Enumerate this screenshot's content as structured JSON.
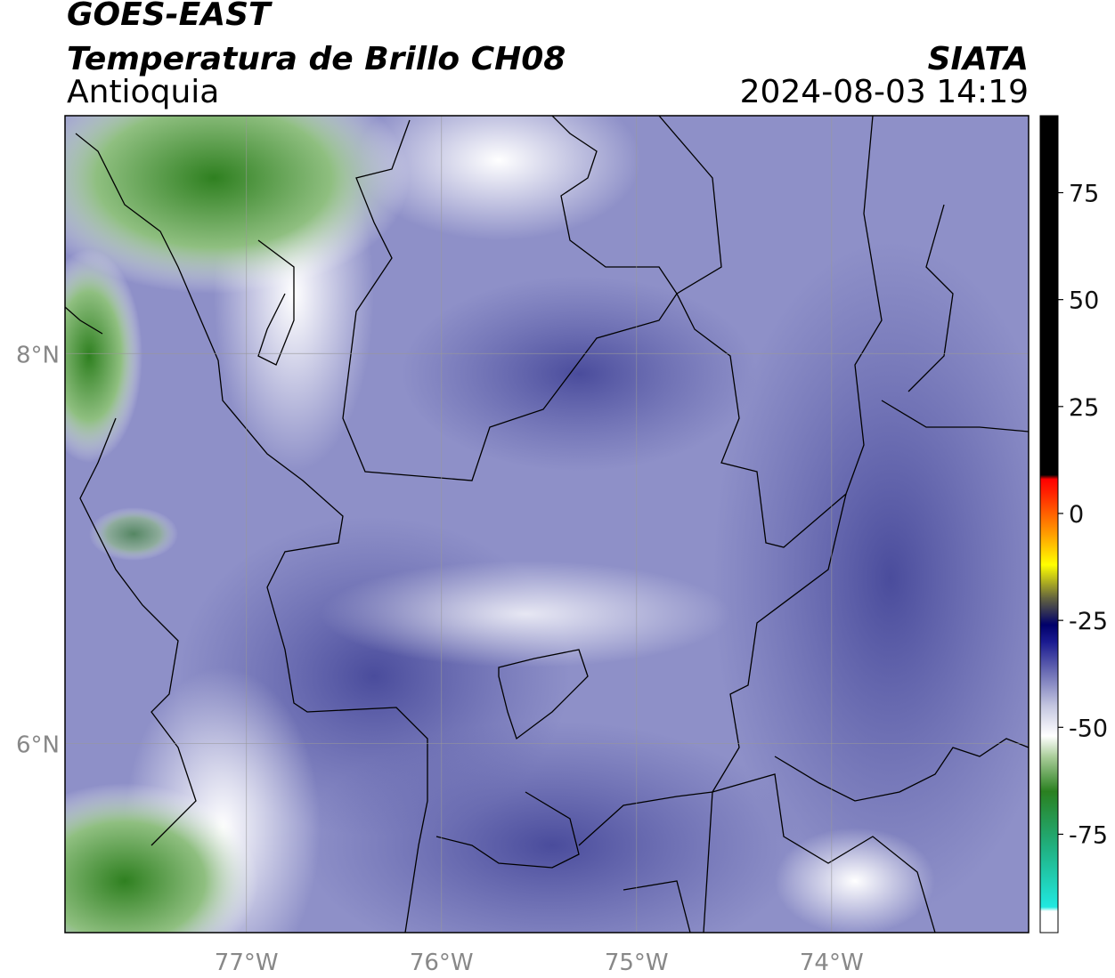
{
  "title": "GOES-EAST",
  "subtitle": "Temperatura de Brillo CH08",
  "region": "Antioquia",
  "source": "SIATA",
  "timestamp": "2024-08-03 14:19",
  "map": {
    "xlim": [
      -77.93,
      -72.99
    ],
    "ylim": [
      5.03,
      9.22
    ],
    "xticks": [
      {
        "value": -77,
        "label": "77°W"
      },
      {
        "value": -76,
        "label": "76°W"
      },
      {
        "value": -75,
        "label": "75°W"
      },
      {
        "value": -74,
        "label": "74°W"
      }
    ],
    "yticks": [
      {
        "value": 8,
        "label": "8°N"
      },
      {
        "value": 6,
        "label": "6°N"
      }
    ],
    "grid": true
  },
  "colorbar": {
    "clim": [
      -98,
      93
    ],
    "ticks": [
      75,
      50,
      25,
      0,
      -25,
      -50,
      -75
    ],
    "stops": [
      {
        "value": -98,
        "color": "#ffffff"
      },
      {
        "value": -93,
        "color": "#ffffff"
      },
      {
        "value": -92,
        "color": "#20e8e0"
      },
      {
        "value": -78,
        "color": "#20b080"
      },
      {
        "value": -65,
        "color": "#2a8020"
      },
      {
        "value": -57,
        "color": "#a8cc98"
      },
      {
        "value": -52,
        "color": "#ffffff"
      },
      {
        "value": -45,
        "color": "#c4c6e0"
      },
      {
        "value": -37,
        "color": "#6a6cb4"
      },
      {
        "value": -30,
        "color": "#1a1a90"
      },
      {
        "value": -26,
        "color": "#00006a"
      },
      {
        "value": -20,
        "color": "#606040"
      },
      {
        "value": -12,
        "color": "#ffff00"
      },
      {
        "value": -5,
        "color": "#ffa000"
      },
      {
        "value": 5,
        "color": "#ff2000"
      },
      {
        "value": 8,
        "color": "#ff0000"
      },
      {
        "value": 9,
        "color": "#000000"
      },
      {
        "value": 93,
        "color": "#000000"
      }
    ]
  }
}
